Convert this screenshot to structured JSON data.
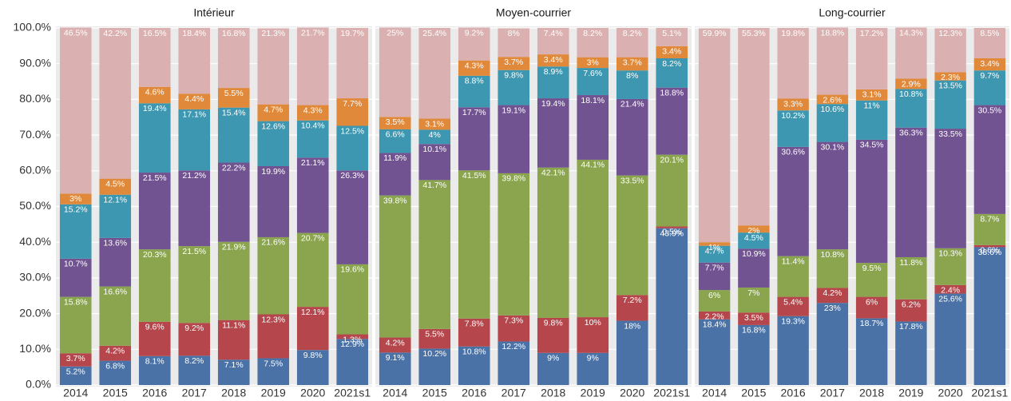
{
  "chart_data": [
    {
      "type": "bar",
      "title": "Intérieur",
      "categories": [
        "2014",
        "2015",
        "2016",
        "2017",
        "2018",
        "2019",
        "2020",
        "2021s1"
      ],
      "ylim": [
        0,
        100
      ],
      "yticks": [
        {
          "value": 0,
          "label": "0.0%"
        },
        {
          "value": 10,
          "label": "10.0%"
        },
        {
          "value": 20,
          "label": "20.0%"
        },
        {
          "value": 30,
          "label": "30.0%"
        },
        {
          "value": 40,
          "label": "40.0%"
        },
        {
          "value": 50,
          "label": "50.0%"
        },
        {
          "value": 60,
          "label": "60.0%"
        },
        {
          "value": 70,
          "label": "70.0%"
        },
        {
          "value": 80,
          "label": "80.0%"
        },
        {
          "value": 90,
          "label": "90.0%"
        },
        {
          "value": 100,
          "label": "100.0%"
        }
      ],
      "grid": true,
      "series": [
        {
          "color": "#4a72a6",
          "values": [
            5.2,
            6.8,
            8.1,
            8.2,
            7.1,
            7.5,
            9.8,
            12.9
          ],
          "value_labels": [
            "5.2%",
            "6.8%",
            "8.1%",
            "8.2%",
            "7.1%",
            "7.5%",
            "9.8%",
            "12.9%"
          ]
        },
        {
          "color": "#b5464b",
          "values": [
            3.7,
            4.2,
            9.6,
            9.2,
            11.1,
            12.3,
            12.1,
            1.3
          ],
          "value_labels": [
            "3.7%",
            "4.2%",
            "9.6%",
            "9.2%",
            "11.1%",
            "12.3%",
            "12.1%",
            "1.3%"
          ]
        },
        {
          "color": "#8aa54d",
          "values": [
            15.8,
            16.6,
            20.3,
            21.5,
            21.9,
            21.6,
            20.7,
            19.6
          ],
          "value_labels": [
            "15.8%",
            "16.6%",
            "20.3%",
            "21.5%",
            "21.9%",
            "21.6%",
            "20.7%",
            "19.6%"
          ]
        },
        {
          "color": "#715391",
          "values": [
            10.7,
            13.6,
            21.5,
            21.2,
            22.2,
            19.9,
            21.1,
            26.3
          ],
          "value_labels": [
            "10.7%",
            "13.6%",
            "21.5%",
            "21.2%",
            "22.2%",
            "19.9%",
            "21.1%",
            "26.3%"
          ]
        },
        {
          "color": "#3d97b0",
          "values": [
            15.2,
            12.1,
            19.4,
            17.1,
            15.4,
            12.6,
            10.4,
            12.5
          ],
          "value_labels": [
            "15.2%",
            "12.1%",
            "19.4%",
            "17.1%",
            "15.4%",
            "12.6%",
            "10.4%",
            "12.5%"
          ]
        },
        {
          "color": "#e0893a",
          "values": [
            3,
            4.5,
            4.6,
            4.4,
            5.5,
            4.7,
            4.3,
            7.7
          ],
          "value_labels": [
            "3%",
            "4.5%",
            "4.6%",
            "4.4%",
            "5.5%",
            "4.7%",
            "4.3%",
            "7.7%"
          ]
        },
        {
          "color": "#dbb0b0",
          "values": [
            46.5,
            42.2,
            16.5,
            18.4,
            16.8,
            21.3,
            21.7,
            19.7
          ],
          "value_labels": [
            "46.5%",
            "42.2%",
            "16.5%",
            "18.4%",
            "16.8%",
            "21.3%",
            "21.7%",
            "19.7%"
          ]
        }
      ]
    },
    {
      "type": "bar",
      "title": "Moyen-courrier",
      "categories": [
        "2014",
        "2015",
        "2016",
        "2017",
        "2018",
        "2019",
        "2020",
        "2021s1"
      ],
      "ylim": [
        0,
        100
      ],
      "series": [
        {
          "color": "#4a72a6",
          "values": [
            9.1,
            10.2,
            10.8,
            12.2,
            9,
            9,
            18,
            43.9
          ],
          "value_labels": [
            "9.1%",
            "10.2%",
            "10.8%",
            "12.2%",
            "9%",
            "9%",
            "18%",
            "43.9%"
          ]
        },
        {
          "color": "#b5464b",
          "values": [
            4.2,
            5.5,
            7.8,
            7.3,
            9.8,
            10,
            7.2,
            0.5
          ],
          "value_labels": [
            "4.2%",
            "5.5%",
            "7.8%",
            "7.3%",
            "9.8%",
            "10%",
            "7.2%",
            "0.5%"
          ]
        },
        {
          "color": "#8aa54d",
          "values": [
            39.8,
            41.7,
            41.5,
            39.8,
            42.1,
            44.1,
            33.5,
            20.1
          ],
          "value_labels": [
            "39.8%",
            "41.7%",
            "41.5%",
            "39.8%",
            "42.1%",
            "44.1%",
            "33.5%",
            "20.1%"
          ]
        },
        {
          "color": "#715391",
          "values": [
            11.9,
            10.1,
            17.7,
            19.1,
            19.4,
            18.1,
            21.4,
            18.8
          ],
          "value_labels": [
            "11.9%",
            "10.1%",
            "17.7%",
            "19.1%",
            "19.4%",
            "18.1%",
            "21.4%",
            "18.8%"
          ]
        },
        {
          "color": "#3d97b0",
          "values": [
            6.6,
            4,
            8.8,
            9.8,
            8.9,
            7.6,
            8,
            8.2
          ],
          "value_labels": [
            "6.6%",
            "4%",
            "8.8%",
            "9.8%",
            "8.9%",
            "7.6%",
            "8%",
            "8.2%"
          ]
        },
        {
          "color": "#e0893a",
          "values": [
            3.5,
            3.1,
            4.3,
            3.7,
            3.4,
            3,
            3.7,
            3.4
          ],
          "value_labels": [
            "3.5%",
            "3.1%",
            "4.3%",
            "3.7%",
            "3.4%",
            "3%",
            "3.7%",
            "3.4%"
          ]
        },
        {
          "color": "#dbb0b0",
          "values": [
            25,
            25.4,
            9.2,
            8,
            7.4,
            8.2,
            8.2,
            5.1
          ],
          "value_labels": [
            "25%",
            "25.4%",
            "9.2%",
            "8%",
            "7.4%",
            "8.2%",
            "8.2%",
            "5.1%"
          ]
        }
      ]
    },
    {
      "type": "bar",
      "title": "Long-courrier",
      "categories": [
        "2014",
        "2015",
        "2016",
        "2017",
        "2018",
        "2019",
        "2020",
        "2021s1"
      ],
      "ylim": [
        0,
        100
      ],
      "series": [
        {
          "color": "#4a72a6",
          "values": [
            18.4,
            16.8,
            19.3,
            23,
            18.7,
            17.8,
            25.6,
            38.6
          ],
          "value_labels": [
            "18.4%",
            "16.8%",
            "19.3%",
            "23%",
            "18.7%",
            "17.8%",
            "25.6%",
            "38.6%"
          ]
        },
        {
          "color": "#b5464b",
          "values": [
            2.2,
            3.5,
            5.4,
            4.2,
            6,
            6.2,
            2.4,
            0.6
          ],
          "value_labels": [
            "2.2%",
            "3.5%",
            "5.4%",
            "4.2%",
            "6%",
            "6.2%",
            "2.4%",
            "0.6%"
          ]
        },
        {
          "color": "#8aa54d",
          "values": [
            6,
            7,
            11.4,
            10.8,
            9.5,
            11.8,
            10.3,
            8.7
          ],
          "value_labels": [
            "6%",
            "7%",
            "11.4%",
            "10.8%",
            "9.5%",
            "11.8%",
            "10.3%",
            "8.7%"
          ]
        },
        {
          "color": "#715391",
          "values": [
            7.7,
            10.9,
            30.6,
            30.1,
            34.5,
            36.3,
            33.5,
            30.5
          ],
          "value_labels": [
            "7.7%",
            "10.9%",
            "30.6%",
            "30.1%",
            "34.5%",
            "36.3%",
            "33.5%",
            "30.5%"
          ]
        },
        {
          "color": "#3d97b0",
          "values": [
            4.7,
            4.5,
            10.2,
            10.6,
            11,
            10.8,
            13.5,
            9.7
          ],
          "value_labels": [
            "4.7%",
            "4.5%",
            "10.2%",
            "10.6%",
            "11%",
            "10.8%",
            "13.5%",
            "9.7%"
          ]
        },
        {
          "color": "#e0893a",
          "values": [
            1,
            2,
            3.3,
            2.6,
            3.1,
            2.9,
            2.3,
            3.4
          ],
          "value_labels": [
            "1%",
            "2%",
            "3.3%",
            "2.6%",
            "3.1%",
            "2.9%",
            "2.3%",
            "3.4%"
          ]
        },
        {
          "color": "#dbb0b0",
          "values": [
            59.9,
            55.3,
            19.8,
            18.8,
            17.2,
            14.3,
            12.3,
            8.5
          ],
          "value_labels": [
            "59.9%",
            "55.3%",
            "19.8%",
            "18.8%",
            "17.2%",
            "14.3%",
            "12.3%",
            "8.5%"
          ]
        }
      ]
    }
  ]
}
